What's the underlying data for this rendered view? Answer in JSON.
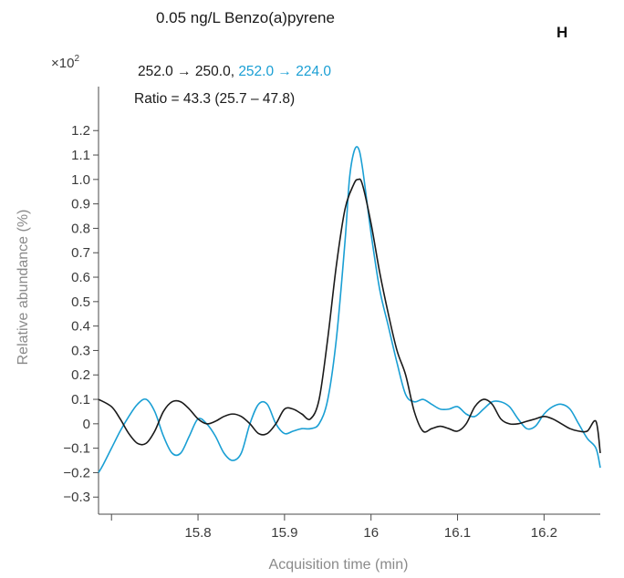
{
  "chart_data": {
    "type": "line",
    "title": "0.05 ng/L Benzo(a)pyrene",
    "panel_label": "H",
    "xlabel": "Acquisition time (min)",
    "ylabel": "Relative abundance (%)",
    "y_multiplier": "×10",
    "y_multiplier_exp": "2",
    "xlim": [
      15.685,
      16.265
    ],
    "ylim": [
      -0.37,
      1.38
    ],
    "x_ticks": [
      15.7,
      15.8,
      15.9,
      16.0,
      16.1,
      16.2
    ],
    "x_tick_labels": [
      "15.8",
      "15.9",
      "16",
      "16.1",
      "16.2"
    ],
    "x_tick_label_values": [
      15.8,
      15.9,
      16.0,
      16.1,
      16.2
    ],
    "y_ticks": [
      -0.3,
      -0.2,
      -0.1,
      0,
      0.1,
      0.2,
      0.3,
      0.4,
      0.5,
      0.6,
      0.7,
      0.8,
      0.9,
      1.0,
      1.1,
      1.2
    ],
    "y_tick_labels": [
      "−0.3",
      "−0.2",
      "−0.1",
      "0",
      "0.1",
      "0.2",
      "0.3",
      "0.4",
      "0.5",
      "0.6",
      "0.7",
      "0.8",
      "0.9",
      "1.0",
      "1.1",
      "1.2"
    ],
    "grid": false,
    "legend": {
      "placement": "top-left",
      "line1": [
        {
          "text": "252.0 → 250.0, ",
          "color": "#1a1a1a"
        },
        {
          "text": "252.0 → 224.0",
          "color": "#1a9fd4"
        }
      ],
      "line2": "Ratio = 43.3 (25.7 – 47.8)"
    },
    "series": [
      {
        "color": "#1a1a1a",
        "x": [
          15.685,
          15.7,
          15.71,
          15.72,
          15.73,
          15.74,
          15.75,
          15.76,
          15.77,
          15.78,
          15.79,
          15.8,
          15.81,
          15.82,
          15.83,
          15.84,
          15.85,
          15.86,
          15.87,
          15.88,
          15.89,
          15.9,
          15.91,
          15.92,
          15.93,
          15.94,
          15.95,
          15.96,
          15.97,
          15.98,
          15.985,
          15.99,
          16.0,
          16.01,
          16.02,
          16.03,
          16.04,
          16.05,
          16.06,
          16.07,
          16.08,
          16.09,
          16.1,
          16.11,
          16.12,
          16.13,
          16.14,
          16.15,
          16.16,
          16.17,
          16.18,
          16.19,
          16.2,
          16.21,
          16.22,
          16.23,
          16.24,
          16.25,
          16.26,
          16.265
        ],
        "y": [
          0.1,
          0.07,
          0.02,
          -0.04,
          -0.08,
          -0.08,
          -0.03,
          0.05,
          0.09,
          0.09,
          0.06,
          0.02,
          0.0,
          0.01,
          0.03,
          0.04,
          0.03,
          0.0,
          -0.04,
          -0.04,
          0.0,
          0.06,
          0.06,
          0.04,
          0.02,
          0.1,
          0.35,
          0.65,
          0.88,
          0.98,
          1.0,
          0.98,
          0.82,
          0.62,
          0.45,
          0.3,
          0.2,
          0.05,
          -0.03,
          -0.02,
          -0.01,
          -0.02,
          -0.03,
          0.0,
          0.07,
          0.1,
          0.08,
          0.02,
          0.0,
          0.0,
          0.01,
          0.02,
          0.03,
          0.02,
          0.0,
          -0.02,
          -0.03,
          -0.03,
          0.01,
          -0.12
        ]
      },
      {
        "color": "#1a9fd4",
        "x": [
          15.685,
          15.69,
          15.7,
          15.71,
          15.72,
          15.73,
          15.74,
          15.75,
          15.76,
          15.77,
          15.78,
          15.79,
          15.8,
          15.81,
          15.82,
          15.83,
          15.84,
          15.85,
          15.86,
          15.87,
          15.88,
          15.89,
          15.9,
          15.91,
          15.92,
          15.93,
          15.94,
          15.95,
          15.96,
          15.97,
          15.975,
          15.98,
          15.985,
          15.99,
          16.0,
          16.01,
          16.02,
          16.03,
          16.04,
          16.05,
          16.06,
          16.07,
          16.08,
          16.09,
          16.1,
          16.11,
          16.12,
          16.13,
          16.14,
          16.15,
          16.16,
          16.17,
          16.18,
          16.19,
          16.2,
          16.21,
          16.22,
          16.23,
          16.24,
          16.25,
          16.26,
          16.265
        ],
        "y": [
          -0.2,
          -0.17,
          -0.1,
          -0.03,
          0.03,
          0.08,
          0.1,
          0.05,
          -0.05,
          -0.12,
          -0.12,
          -0.05,
          0.02,
          0.0,
          -0.05,
          -0.12,
          -0.15,
          -0.12,
          0.0,
          0.08,
          0.08,
          0.0,
          -0.04,
          -0.03,
          -0.02,
          -0.02,
          0.0,
          0.1,
          0.35,
          0.75,
          1.0,
          1.11,
          1.13,
          1.05,
          0.78,
          0.55,
          0.4,
          0.25,
          0.12,
          0.09,
          0.1,
          0.08,
          0.06,
          0.06,
          0.07,
          0.04,
          0.03,
          0.06,
          0.09,
          0.09,
          0.07,
          0.02,
          -0.02,
          -0.01,
          0.04,
          0.07,
          0.08,
          0.06,
          0.0,
          -0.06,
          -0.1,
          -0.18
        ]
      }
    ]
  }
}
